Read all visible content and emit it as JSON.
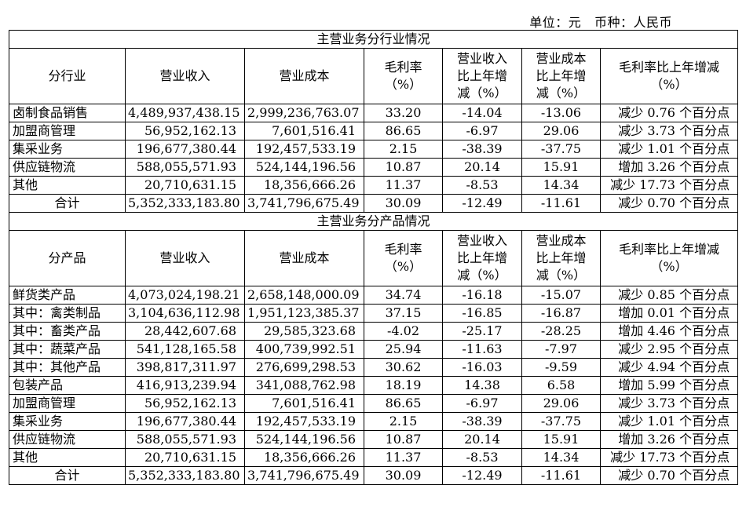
{
  "unit_line": "单位：元   币种：人民币",
  "industry": {
    "section_title": "主营业务分行业情况",
    "headers": [
      "分行业",
      "营业收入",
      "营业成本",
      "毛利率（%）",
      "营业收入比上年增减（%）",
      "营业成本比上年增减（%）",
      "毛利率比上年增减（%）"
    ],
    "rows": [
      [
        "卤制食品销售",
        "4,489,937,438.15",
        "2,999,236,763.07",
        "33.20",
        "-14.04",
        "-13.06",
        "减少 0.76 个百分点"
      ],
      [
        "加盟商管理",
        "56,952,162.13",
        "7,601,516.41",
        "86.65",
        "-6.97",
        "29.06",
        "减少 3.73 个百分点"
      ],
      [
        "集采业务",
        "196,677,380.44",
        "192,457,533.19",
        "2.15",
        "-38.39",
        "-37.75",
        "减少 1.01 个百分点"
      ],
      [
        "供应链物流",
        "588,055,571.93",
        "524,144,196.56",
        "10.87",
        "20.14",
        "15.91",
        "增加 3.26 个百分点"
      ],
      [
        "其他",
        "20,710,631.15",
        "18,356,666.26",
        "11.37",
        "-8.53",
        "14.34",
        "减少 17.73 个百分点"
      ]
    ],
    "total": [
      "合计",
      "5,352,333,183.80",
      "3,741,796,675.49",
      "30.09",
      "-12.49",
      "-11.61",
      "减少 0.70 个百分点"
    ]
  },
  "product": {
    "section_title": "主营业务分产品情况",
    "headers": [
      "分产品",
      "营业收入",
      "营业成本",
      "毛利率（%）",
      "营业收入比上年增减（%）",
      "营业成本比上年增减（%）",
      "毛利率比上年增减（%）"
    ],
    "rows": [
      [
        "鲜货类产品",
        "4,073,024,198.21",
        "2,658,148,000.09",
        "34.74",
        "-16.18",
        "-15.07",
        "减少 0.85 个百分点"
      ],
      [
        "其中：禽类制品",
        "3,104,636,112.98",
        "1,951,123,385.37",
        "37.15",
        "-16.85",
        "-16.87",
        "增加 0.01 个百分点"
      ],
      [
        "其中：畜类产品",
        "28,442,607.68",
        "29,585,323.68",
        "-4.02",
        "-25.17",
        "-28.25",
        "增加 4.46 个百分点"
      ],
      [
        "其中：蔬菜产品",
        "541,128,165.58",
        "400,739,992.51",
        "25.94",
        "-11.63",
        "-7.97",
        "减少 2.95 个百分点"
      ],
      [
        "其中：其他产品",
        "398,817,311.97",
        "276,699,298.53",
        "30.62",
        "-16.03",
        "-9.59",
        "减少 4.94 个百分点"
      ],
      [
        "包装产品",
        "416,913,239.94",
        "341,088,762.98",
        "18.19",
        "14.38",
        "6.58",
        "增加 5.99 个百分点"
      ],
      [
        "加盟商管理",
        "56,952,162.13",
        "7,601,516.41",
        "86.65",
        "-6.97",
        "29.06",
        "减少 3.73 个百分点"
      ],
      [
        "集采业务",
        "196,677,380.44",
        "192,457,533.19",
        "2.15",
        "-38.39",
        "-37.75",
        "减少 1.01 个百分点"
      ],
      [
        "供应链物流",
        "588,055,571.93",
        "524,144,196.56",
        "10.87",
        "20.14",
        "15.91",
        "增加 3.26 个百分点"
      ],
      [
        "其他",
        "20,710,631.15",
        "18,356,666.26",
        "11.37",
        "-8.53",
        "14.34",
        "减少 17.73 个百分点"
      ]
    ],
    "total": [
      "合计",
      "5,352,333,183.80",
      "3,741,796,675.49",
      "30.09",
      "-12.49",
      "-11.61",
      "减少 0.70 个百分点"
    ]
  }
}
